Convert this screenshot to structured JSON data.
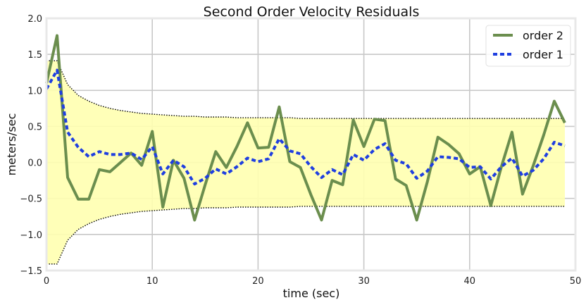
{
  "chart_data": {
    "type": "line",
    "title": "Second Order Velocity Residuals",
    "xlabel": "time (sec)",
    "ylabel": "meters/sec",
    "xlim": [
      0,
      50
    ],
    "ylim": [
      -1.5,
      2.0
    ],
    "xticks": [
      0,
      10,
      20,
      30,
      40,
      50
    ],
    "yticks": [
      -1.5,
      -1.0,
      -0.5,
      0.0,
      0.5,
      1.0,
      1.5,
      2.0
    ],
    "xtick_labels": [
      "0",
      "10",
      "20",
      "30",
      "40",
      "50"
    ],
    "ytick_labels": [
      "−1.5",
      "−1.0",
      "−0.5",
      "0.0",
      "0.5",
      "1.0",
      "1.5",
      "2.0"
    ],
    "grid": true,
    "legend_position": "top-right",
    "x": [
      0,
      1,
      2,
      3,
      4,
      5,
      6,
      7,
      8,
      9,
      10,
      11,
      12,
      13,
      14,
      15,
      16,
      17,
      18,
      19,
      20,
      21,
      22,
      23,
      24,
      25,
      26,
      27,
      28,
      29,
      30,
      31,
      32,
      33,
      34,
      35,
      36,
      37,
      38,
      39,
      40,
      41,
      42,
      43,
      44,
      45,
      46,
      47,
      48,
      49
    ],
    "series": [
      {
        "name": "order 2",
        "color": "#6b8e4e",
        "style": "solid",
        "values": [
          1.1,
          1.76,
          -0.21,
          -0.51,
          -0.51,
          -0.1,
          -0.13,
          0.0,
          0.13,
          -0.04,
          0.43,
          -0.62,
          0.03,
          -0.22,
          -0.8,
          -0.31,
          0.15,
          -0.07,
          0.22,
          0.55,
          0.2,
          0.21,
          0.77,
          0.01,
          -0.07,
          -0.45,
          -0.8,
          -0.25,
          -0.31,
          0.59,
          0.22,
          0.6,
          0.58,
          -0.23,
          -0.32,
          -0.8,
          -0.27,
          0.35,
          0.25,
          0.12,
          -0.16,
          -0.06,
          -0.6,
          -0.06,
          0.42,
          -0.44,
          -0.05,
          0.38,
          0.85,
          0.55
        ]
      },
      {
        "name": "order 1",
        "color": "#1f3fe0",
        "style": "dashed",
        "values": [
          1.02,
          1.28,
          0.42,
          0.21,
          0.08,
          0.15,
          0.11,
          0.11,
          0.13,
          0.04,
          0.22,
          -0.16,
          0.03,
          -0.06,
          -0.3,
          -0.22,
          -0.09,
          -0.16,
          -0.06,
          0.06,
          0.01,
          0.05,
          0.33,
          0.16,
          0.12,
          -0.06,
          -0.21,
          -0.1,
          -0.17,
          0.11,
          0.03,
          0.18,
          0.26,
          0.03,
          -0.02,
          -0.22,
          -0.12,
          0.08,
          0.07,
          0.05,
          -0.07,
          -0.06,
          -0.23,
          -0.06,
          0.06,
          -0.19,
          -0.11,
          0.05,
          0.28,
          0.23
        ]
      }
    ],
    "band": {
      "color": "#ffffb0",
      "edge_color": "#000000",
      "upper": [
        1.41,
        1.41,
        1.08,
        0.93,
        0.85,
        0.79,
        0.75,
        0.72,
        0.7,
        0.68,
        0.67,
        0.66,
        0.65,
        0.64,
        0.64,
        0.63,
        0.63,
        0.63,
        0.62,
        0.62,
        0.62,
        0.62,
        0.62,
        0.62,
        0.61,
        0.61,
        0.61,
        0.61,
        0.61,
        0.61,
        0.61,
        0.61,
        0.61,
        0.61,
        0.61,
        0.61,
        0.61,
        0.61,
        0.61,
        0.61,
        0.61,
        0.61,
        0.61,
        0.61,
        0.61,
        0.61,
        0.61,
        0.61,
        0.61,
        0.61
      ]
    }
  }
}
